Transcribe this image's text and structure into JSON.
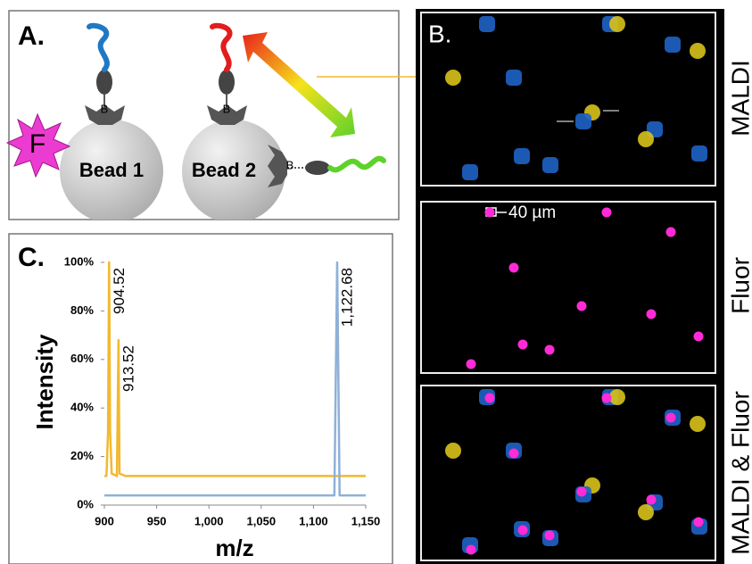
{
  "panel_a": {
    "label": "A.",
    "star_text": "F",
    "bead_1": "Bead 1",
    "bead_2": "Bead 2",
    "linker_1": "B",
    "linker_2": "B",
    "linker_3": "B"
  },
  "panel_b": {
    "label": "B.",
    "scale_text": "40 µm",
    "row_labels": [
      "MALDI",
      "Fluor",
      "MALDI & Fluor"
    ]
  },
  "chart_data": {
    "type": "line",
    "panel_label": "C.",
    "x_label": "m/z",
    "y_label": "Intensity",
    "series": [
      {
        "color": "#f2b92f",
        "x": [
          900,
          902,
          903.5,
          904.52,
          905.5,
          907,
          912,
          913.52,
          914.5,
          920,
          1150
        ],
        "values": [
          12,
          12,
          30,
          100,
          30,
          13,
          12,
          68,
          13,
          12,
          12
        ]
      },
      {
        "color": "#8fb0d8",
        "x": [
          900,
          1120,
          1122.68,
          1125,
          1150
        ],
        "values": [
          4,
          4,
          100,
          4,
          4
        ]
      }
    ],
    "annotations": [
      {
        "x": 904.52,
        "y": 100,
        "label": "904.52"
      },
      {
        "x": 913.52,
        "y": 68,
        "label": "913.52"
      },
      {
        "x": 1122.68,
        "y": 100,
        "label": "1,122.68"
      }
    ],
    "xlim": [
      900,
      1150
    ],
    "xticks": [
      900,
      950,
      {
        "value": 1000,
        "label": "1,000"
      },
      {
        "value": 1050,
        "label": "1,050"
      },
      {
        "value": 1100,
        "label": "1,100"
      },
      {
        "value": 1150,
        "label": "1,150"
      }
    ],
    "ylim": [
      0,
      100
    ],
    "yticks": [
      {
        "value": 0,
        "label": "0%"
      },
      {
        "value": 20,
        "label": "20%"
      },
      {
        "value": 40,
        "label": "40%"
      },
      {
        "value": 60,
        "label": "60%"
      },
      {
        "value": 80,
        "label": "80%"
      },
      {
        "value": 100,
        "label": "100%"
      }
    ]
  }
}
